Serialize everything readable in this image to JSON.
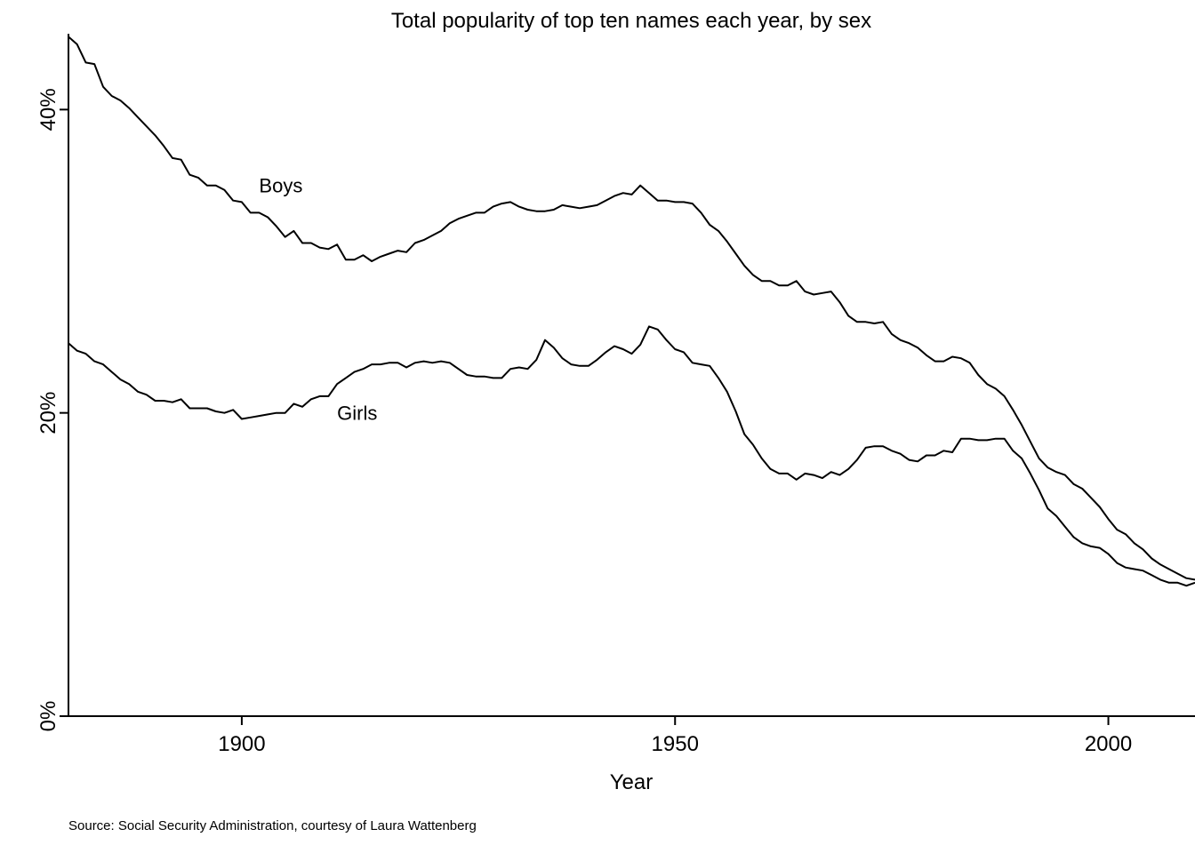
{
  "chart_data": {
    "type": "line",
    "title": "Total popularity of top ten names each year, by sex",
    "xlabel": "Year",
    "ylabel": "",
    "xlim": [
      1880,
      2010
    ],
    "ylim": [
      0,
      45
    ],
    "x_ticks": [
      1900,
      1950,
      2000
    ],
    "x_tick_labels": [
      "1900",
      "1950",
      "2000"
    ],
    "y_ticks": [
      0,
      20,
      40
    ],
    "y_tick_labels": [
      "0%",
      "20%",
      "40%"
    ],
    "grid": false,
    "legend": "none",
    "annotations": [
      {
        "text": "Boys",
        "series": "Boys",
        "x": 1902,
        "y": 35
      },
      {
        "text": "Girls",
        "series": "Girls",
        "x": 1911,
        "y": 20
      }
    ],
    "source_note": "Source:  Social Security Administration, courtesy of Laura Wattenberg",
    "x": [
      1880,
      1881,
      1882,
      1883,
      1884,
      1885,
      1886,
      1887,
      1888,
      1889,
      1890,
      1891,
      1892,
      1893,
      1894,
      1895,
      1896,
      1897,
      1898,
      1899,
      1900,
      1901,
      1902,
      1903,
      1904,
      1905,
      1906,
      1907,
      1908,
      1909,
      1910,
      1911,
      1912,
      1913,
      1914,
      1915,
      1916,
      1917,
      1918,
      1919,
      1920,
      1921,
      1922,
      1923,
      1924,
      1925,
      1926,
      1927,
      1928,
      1929,
      1930,
      1931,
      1932,
      1933,
      1934,
      1935,
      1936,
      1937,
      1938,
      1939,
      1940,
      1941,
      1942,
      1943,
      1944,
      1945,
      1946,
      1947,
      1948,
      1949,
      1950,
      1951,
      1952,
      1953,
      1954,
      1955,
      1956,
      1957,
      1958,
      1959,
      1960,
      1961,
      1962,
      1963,
      1964,
      1965,
      1966,
      1967,
      1968,
      1969,
      1970,
      1971,
      1972,
      1973,
      1974,
      1975,
      1976,
      1977,
      1978,
      1979,
      1980,
      1981,
      1982,
      1983,
      1984,
      1985,
      1986,
      1987,
      1988,
      1989,
      1990,
      1991,
      1992,
      1993,
      1994,
      1995,
      1996,
      1997,
      1998,
      1999,
      2000,
      2001,
      2002,
      2003,
      2004,
      2005,
      2006,
      2007,
      2008,
      2009,
      2010
    ],
    "series": [
      {
        "name": "Boys",
        "values": [
          44.8,
          44.3,
          43.1,
          43.0,
          41.5,
          40.9,
          40.6,
          40.1,
          39.5,
          38.9,
          38.3,
          37.6,
          36.8,
          36.7,
          35.7,
          35.5,
          35.0,
          35.0,
          34.7,
          34.0,
          33.9,
          33.2,
          33.2,
          32.9,
          32.3,
          31.6,
          32.0,
          31.2,
          31.2,
          30.9,
          30.8,
          31.1,
          30.1,
          30.1,
          30.4,
          30.0,
          30.3,
          30.5,
          30.7,
          30.6,
          31.2,
          31.4,
          31.7,
          32.0,
          32.5,
          32.8,
          33.0,
          33.2,
          33.2,
          33.6,
          33.8,
          33.9,
          33.6,
          33.4,
          33.3,
          33.3,
          33.4,
          33.7,
          33.6,
          33.5,
          33.6,
          33.7,
          34.0,
          34.3,
          34.5,
          34.4,
          35.0,
          34.5,
          34.0,
          34.0,
          33.9,
          33.9,
          33.8,
          33.2,
          32.4,
          32.0,
          31.3,
          30.5,
          29.7,
          29.1,
          28.7,
          28.7,
          28.4,
          28.4,
          28.7,
          28.0,
          27.8,
          27.9,
          28.0,
          27.3,
          26.4,
          26.0,
          26.0,
          25.9,
          26.0,
          25.2,
          24.8,
          24.6,
          24.3,
          23.8,
          23.4,
          23.4,
          23.7,
          23.6,
          23.3,
          22.5,
          21.9,
          21.6,
          21.1,
          20.2,
          19.2,
          18.1,
          17.0,
          16.4,
          16.1,
          15.9,
          15.3,
          15.0,
          14.4,
          13.8,
          13.0,
          12.3,
          12.0,
          11.4,
          11.0,
          10.4,
          10.0,
          9.7,
          9.4,
          9.1,
          9.0
        ]
      },
      {
        "name": "Girls",
        "values": [
          24.6,
          24.1,
          23.9,
          23.4,
          23.2,
          22.7,
          22.2,
          21.9,
          21.4,
          21.2,
          20.8,
          20.8,
          20.7,
          20.9,
          20.3,
          20.3,
          20.3,
          20.1,
          20.0,
          20.2,
          19.6,
          19.7,
          19.8,
          19.9,
          20.0,
          20.0,
          20.6,
          20.4,
          20.9,
          21.1,
          21.1,
          21.9,
          22.3,
          22.7,
          22.9,
          23.2,
          23.2,
          23.3,
          23.3,
          23.0,
          23.3,
          23.4,
          23.3,
          23.4,
          23.3,
          22.9,
          22.5,
          22.4,
          22.4,
          22.3,
          22.3,
          22.9,
          23.0,
          22.9,
          23.5,
          24.8,
          24.3,
          23.6,
          23.2,
          23.1,
          23.1,
          23.5,
          24.0,
          24.4,
          24.2,
          23.9,
          24.5,
          25.7,
          25.5,
          24.8,
          24.2,
          24.0,
          23.3,
          23.2,
          23.1,
          22.3,
          21.4,
          20.1,
          18.6,
          17.9,
          17.0,
          16.3,
          16.0,
          16.0,
          15.6,
          16.0,
          15.9,
          15.7,
          16.1,
          15.9,
          16.3,
          16.9,
          17.7,
          17.8,
          17.8,
          17.5,
          17.3,
          16.9,
          16.8,
          17.2,
          17.2,
          17.5,
          17.4,
          18.3,
          18.3,
          18.2,
          18.2,
          18.3,
          18.3,
          17.5,
          17.0,
          16.0,
          14.9,
          13.7,
          13.2,
          12.5,
          11.8,
          11.4,
          11.2,
          11.1,
          10.7,
          10.1,
          9.8,
          9.7,
          9.6,
          9.3,
          9.0,
          8.8,
          8.8,
          8.6,
          8.8
        ]
      }
    ]
  }
}
